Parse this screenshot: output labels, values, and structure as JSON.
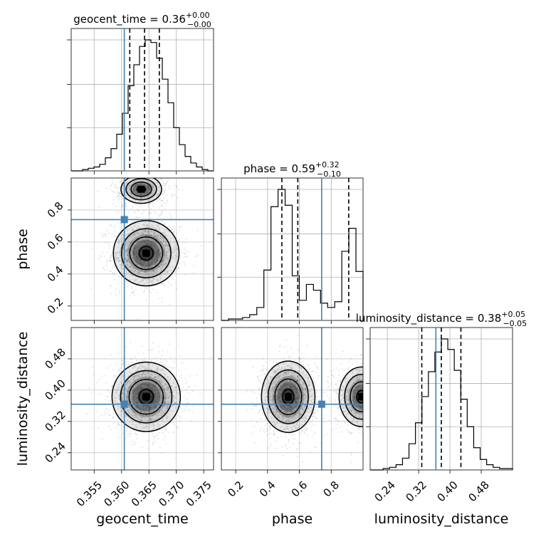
{
  "chart_data": {
    "type": "corner",
    "parameters": [
      "geocent_time",
      "phase",
      "luminosity_distance"
    ],
    "truths": [
      0.3605,
      0.74,
      0.364
    ],
    "titles": [
      {
        "name": "geocent_time",
        "median": "0.36",
        "plus": "+0.00",
        "minus": "−0.00"
      },
      {
        "name": "phase",
        "median": "0.59",
        "plus": "+0.32",
        "minus": "−0.10"
      },
      {
        "name": "luminosity_distance",
        "median": "0.38",
        "plus": "+0.05",
        "minus": "−0.05"
      }
    ],
    "axes": {
      "geocent_time": {
        "range": [
          0.3508,
          0.3768
        ],
        "ticks": [
          0.355,
          0.36,
          0.365,
          0.37,
          0.375
        ],
        "tick_labels": [
          "0.355",
          "0.360",
          "0.365",
          "0.370",
          "0.375"
        ]
      },
      "phase": {
        "range": [
          0.11,
          1.0
        ],
        "ticks": [
          0.2,
          0.4,
          0.6,
          0.8
        ],
        "tick_labels": [
          "0.2",
          "0.4",
          "0.6",
          "0.8"
        ]
      },
      "luminosity_distance": {
        "range": [
          0.196,
          0.56
        ],
        "ticks": [
          0.24,
          0.32,
          0.4,
          0.48
        ],
        "tick_labels": [
          "0.24",
          "0.32",
          "0.40",
          "0.48"
        ]
      }
    },
    "quantiles": {
      "geocent_time": [
        0.3615,
        0.3642,
        0.3669
      ],
      "phase": [
        0.49,
        0.59,
        0.91
      ],
      "luminosity_distance": [
        0.328,
        0.378,
        0.428
      ]
    },
    "histograms": {
      "geocent_time": [
        0,
        0,
        1,
        2,
        3,
        5,
        10,
        17,
        28,
        44,
        65,
        81,
        95,
        100,
        98,
        86,
        70,
        52,
        33,
        20,
        11,
        6,
        3,
        1,
        0
      ],
      "phase": [
        0,
        1,
        1,
        2,
        4,
        9,
        35,
        79,
        91,
        80,
        31,
        14,
        25,
        21,
        12,
        9,
        13,
        48,
        64,
        34
      ],
      "luminosity_distance": [
        0,
        0,
        1,
        2,
        4,
        9,
        20,
        36,
        56,
        75,
        90,
        100,
        92,
        76,
        54,
        33,
        17,
        8,
        4,
        2,
        1,
        1
      ]
    },
    "modes": [
      {
        "x": 0.3645,
        "y": 0.53,
        "sx": 0.0025,
        "sy": 0.085,
        "w": 1.0
      },
      {
        "x": 0.3636,
        "y": 0.93,
        "sx": 0.0021,
        "sy": 0.05,
        "w": 0.36
      },
      {
        "x": 0.3645,
        "y": 0.383,
        "sx": 0.0026,
        "sy": 0.037,
        "w": 1.0
      }
    ]
  }
}
